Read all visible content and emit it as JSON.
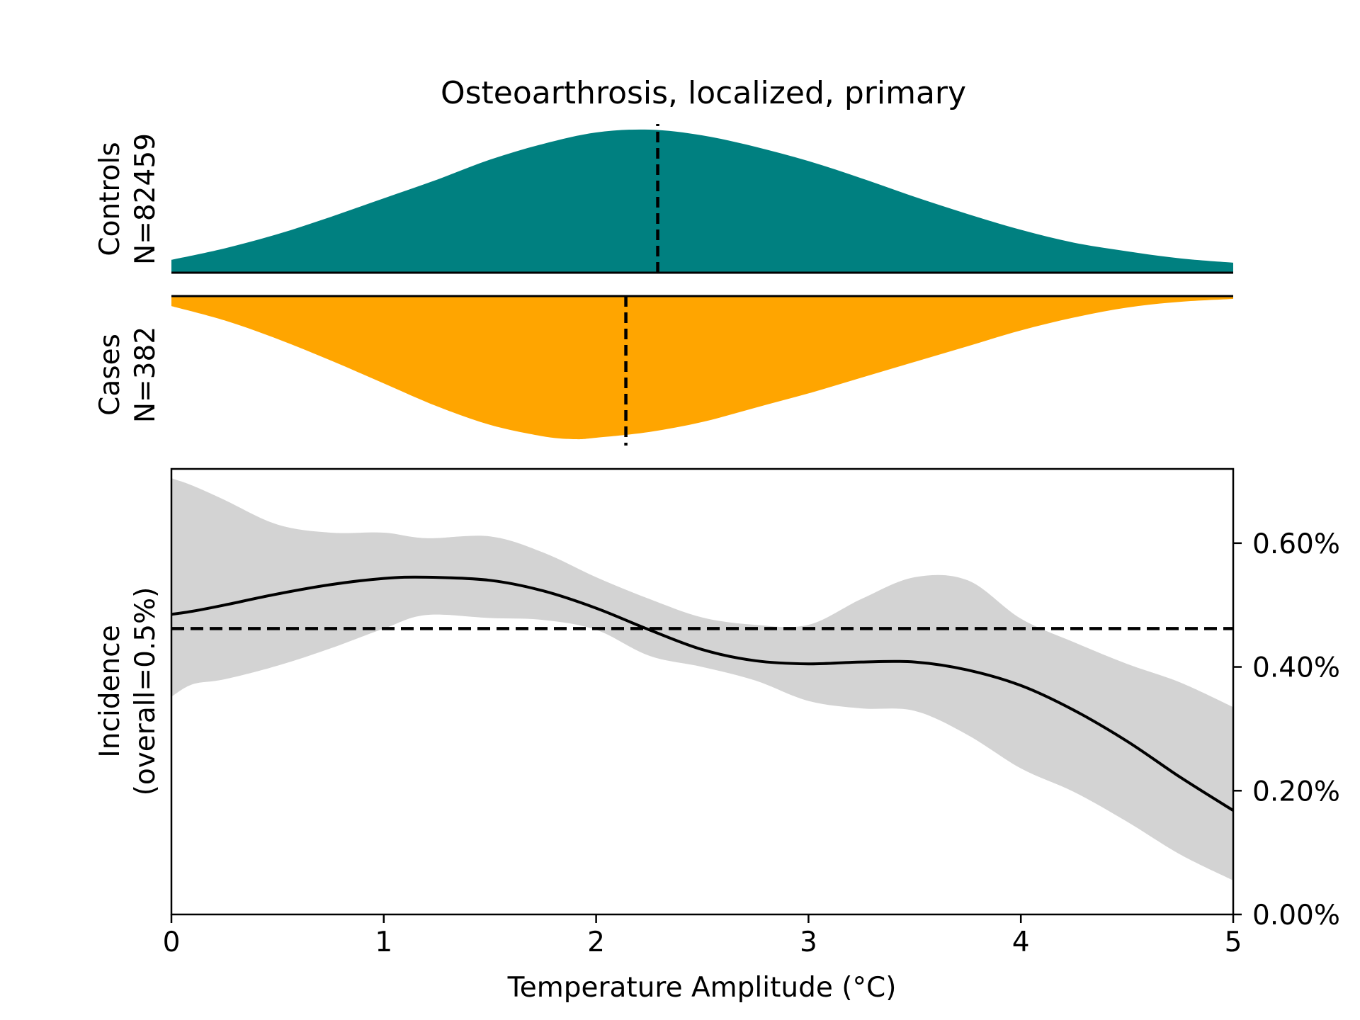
{
  "figure": {
    "title": "Osteoarthrosis, localized, primary"
  },
  "chart_data": [
    {
      "type": "area",
      "panel": "controls-density",
      "label_line1": "Controls",
      "label_line2": "N=82459",
      "color": "#008080",
      "xlim": [
        0,
        5
      ],
      "ylim": [
        0,
        1
      ],
      "x": [
        0,
        0.25,
        0.5,
        0.75,
        1.0,
        1.25,
        1.5,
        1.75,
        2.0,
        2.25,
        2.5,
        2.75,
        3.0,
        3.25,
        3.5,
        3.75,
        4.0,
        4.25,
        4.5,
        4.75,
        5.0
      ],
      "y": [
        0.09,
        0.17,
        0.27,
        0.39,
        0.52,
        0.65,
        0.79,
        0.9,
        0.98,
        1.0,
        0.96,
        0.88,
        0.78,
        0.66,
        0.53,
        0.41,
        0.3,
        0.21,
        0.15,
        0.1,
        0.07
      ],
      "median": 2.29
    },
    {
      "type": "area",
      "panel": "cases-density",
      "label_line1": "Cases",
      "label_line2": "N=382",
      "color": "#FFA500",
      "xlim": [
        0,
        5
      ],
      "ylim": [
        0,
        1
      ],
      "x": [
        0,
        0.25,
        0.5,
        0.75,
        1.0,
        1.25,
        1.5,
        1.75,
        1.9,
        2.0,
        2.25,
        2.5,
        2.75,
        3.0,
        3.25,
        3.5,
        3.75,
        4.0,
        4.25,
        4.5,
        4.75,
        5.0
      ],
      "y": [
        0.07,
        0.17,
        0.3,
        0.45,
        0.61,
        0.77,
        0.9,
        0.98,
        1.0,
        0.99,
        0.95,
        0.88,
        0.78,
        0.68,
        0.57,
        0.46,
        0.35,
        0.24,
        0.15,
        0.08,
        0.04,
        0.02
      ],
      "median": 2.14
    },
    {
      "type": "line",
      "panel": "incidence",
      "ylabel_line1": "Incidence",
      "ylabel_line2": "(overall=0.5%)",
      "xlabel": "Temperature Amplitude (°C)",
      "xlim": [
        0,
        5
      ],
      "ylim": [
        0,
        0.72
      ],
      "xticks": [
        "0",
        "1",
        "2",
        "3",
        "4",
        "5"
      ],
      "yticks": [
        {
          "value": 0.0,
          "label": "0.00%"
        },
        {
          "value": 0.2,
          "label": "0.20%"
        },
        {
          "value": 0.4,
          "label": "0.40%"
        },
        {
          "value": 0.6,
          "label": "0.60%"
        }
      ],
      "overall_rate": 0.462,
      "band_color": "#D3D3D3",
      "x": [
        0,
        0.1,
        0.25,
        0.5,
        0.75,
        1.0,
        1.2,
        1.5,
        1.75,
        2.0,
        2.25,
        2.5,
        2.75,
        3.0,
        3.25,
        3.5,
        3.75,
        4.0,
        4.25,
        4.5,
        4.75,
        5.0
      ],
      "series": [
        {
          "name": "incidence",
          "values": [
            0.485,
            0.49,
            0.5,
            0.518,
            0.533,
            0.543,
            0.545,
            0.54,
            0.523,
            0.495,
            0.46,
            0.428,
            0.41,
            0.405,
            0.408,
            0.408,
            0.395,
            0.37,
            0.33,
            0.28,
            0.222,
            0.168
          ]
        },
        {
          "name": "ci-upper",
          "values": [
            0.705,
            0.693,
            0.67,
            0.63,
            0.617,
            0.617,
            0.608,
            0.611,
            0.585,
            0.545,
            0.51,
            0.48,
            0.468,
            0.468,
            0.51,
            0.545,
            0.54,
            0.478,
            0.44,
            0.405,
            0.375,
            0.335
          ]
        },
        {
          "name": "ci-lower",
          "values": [
            0.352,
            0.372,
            0.38,
            0.402,
            0.43,
            0.462,
            0.484,
            0.479,
            0.476,
            0.46,
            0.418,
            0.4,
            0.378,
            0.345,
            0.333,
            0.329,
            0.29,
            0.236,
            0.198,
            0.15,
            0.097,
            0.055
          ]
        }
      ]
    }
  ]
}
